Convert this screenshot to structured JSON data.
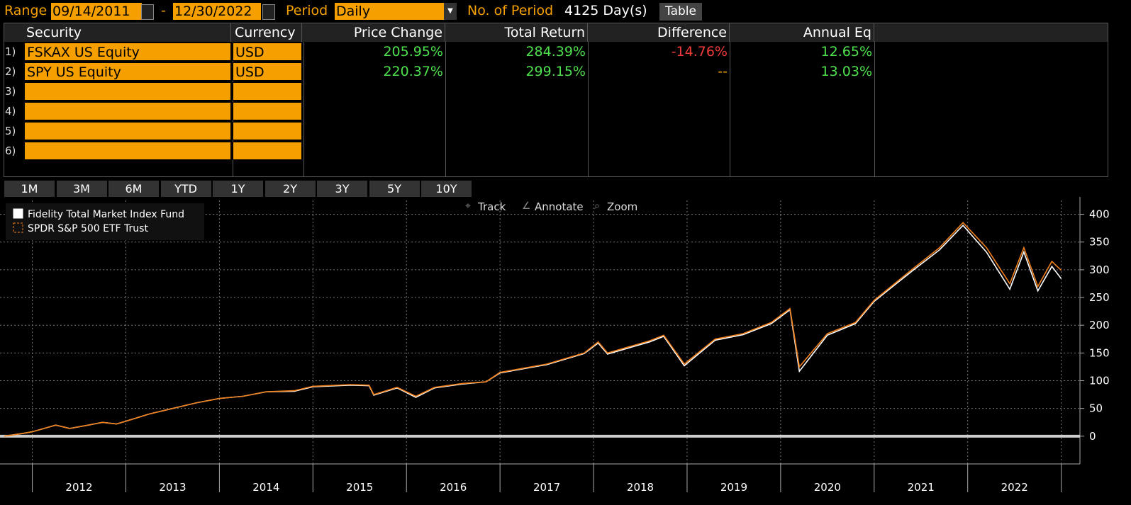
{
  "header": {
    "range_label": "Range",
    "start_date": "09/14/2011",
    "dash": "-",
    "end_date": "12/30/2022",
    "period_label": "Period",
    "period": "Daily",
    "count_label": "No. of Period",
    "count_value": "4125 Day(s)",
    "table_button": "Table"
  },
  "table": {
    "columns": [
      "Security",
      "Currency",
      "Price Change",
      "Total Return",
      "Difference",
      "Annual Eq"
    ],
    "rows": [
      {
        "num": "1)",
        "security": "FSKAX US Equity",
        "currency": "USD",
        "price_change": "205.95%",
        "total_return": "284.39%",
        "difference": "-14.76%",
        "annual_eq": "12.65%"
      },
      {
        "num": "2)",
        "security": "SPY US Equity",
        "currency": "USD",
        "price_change": "220.37%",
        "total_return": "299.15%",
        "difference": "--",
        "annual_eq": "13.03%"
      },
      {
        "num": "3)"
      },
      {
        "num": "4)"
      },
      {
        "num": "5)"
      },
      {
        "num": "6)"
      }
    ]
  },
  "period_buttons": [
    "1M",
    "3M",
    "6M",
    "YTD",
    "1Y",
    "2Y",
    "3Y",
    "5Y",
    "10Y"
  ],
  "toolbar": [
    "Track",
    "Annotate",
    "Zoom"
  ],
  "chart_data": {
    "type": "line",
    "x": [
      2011.7,
      2011.9,
      2012.0,
      2012.25,
      2012.4,
      2012.6,
      2012.75,
      2012.9,
      2013.0,
      2013.25,
      2013.5,
      2013.75,
      2014.0,
      2014.25,
      2014.5,
      2014.8,
      2015.0,
      2015.4,
      2015.6,
      2015.65,
      2015.9,
      2016.1,
      2016.3,
      2016.6,
      2016.85,
      2017.0,
      2017.5,
      2017.9,
      2018.05,
      2018.15,
      2018.6,
      2018.75,
      2018.97,
      2019.3,
      2019.6,
      2019.9,
      2020.1,
      2020.2,
      2020.5,
      2020.8,
      2021.0,
      2021.4,
      2021.7,
      2021.95,
      2022.2,
      2022.45,
      2022.6,
      2022.75,
      2022.9,
      2023.0
    ],
    "series": [
      {
        "name": "Fidelity Total Market Index Fund",
        "color": "#ffffff",
        "dashed": false,
        "values": [
          0,
          5,
          8,
          20,
          14,
          20,
          25,
          22,
          27,
          40,
          50,
          60,
          68,
          72,
          80,
          81,
          89,
          92,
          91,
          74,
          87,
          70,
          87,
          94,
          98,
          114,
          129,
          149,
          168,
          148,
          170,
          180,
          127,
          173,
          183,
          203,
          228,
          117,
          182,
          203,
          243,
          297,
          336,
          380,
          332,
          265,
          332,
          262,
          306,
          284
        ]
      },
      {
        "name": "SPDR S&P 500 ETF Trust",
        "color": "#f07f1a",
        "dashed": true,
        "values": [
          0,
          5,
          8,
          20,
          14,
          20,
          25,
          22,
          27,
          40,
          50,
          60,
          68,
          72,
          80,
          82,
          90,
          93,
          92,
          75,
          88,
          72,
          88,
          95,
          98,
          115,
          130,
          150,
          170,
          150,
          172,
          182,
          130,
          175,
          185,
          205,
          230,
          125,
          185,
          205,
          245,
          300,
          340,
          385,
          340,
          275,
          340,
          270,
          315,
          299
        ]
      }
    ],
    "xlim": [
      2011.7,
      2023.2
    ],
    "xticks": [
      {
        "value": 2012.5,
        "label": "2012"
      },
      {
        "value": 2013.5,
        "label": "2013"
      },
      {
        "value": 2014.5,
        "label": "2014"
      },
      {
        "value": 2015.5,
        "label": "2015"
      },
      {
        "value": 2016.5,
        "label": "2016"
      },
      {
        "value": 2017.5,
        "label": "2017"
      },
      {
        "value": 2018.5,
        "label": "2018"
      },
      {
        "value": 2019.5,
        "label": "2019"
      },
      {
        "value": 2020.5,
        "label": "2020"
      },
      {
        "value": 2021.5,
        "label": "2021"
      },
      {
        "value": 2022.5,
        "label": "2022"
      }
    ],
    "xgrid": [
      2012,
      2013,
      2014,
      2015,
      2016,
      2017,
      2018,
      2019,
      2020,
      2021,
      2022,
      2023
    ],
    "ylim": [
      -50,
      425
    ],
    "yticks": [
      0,
      50,
      100,
      150,
      200,
      250,
      300,
      350,
      400
    ],
    "grid": true,
    "legend": "upper left"
  }
}
